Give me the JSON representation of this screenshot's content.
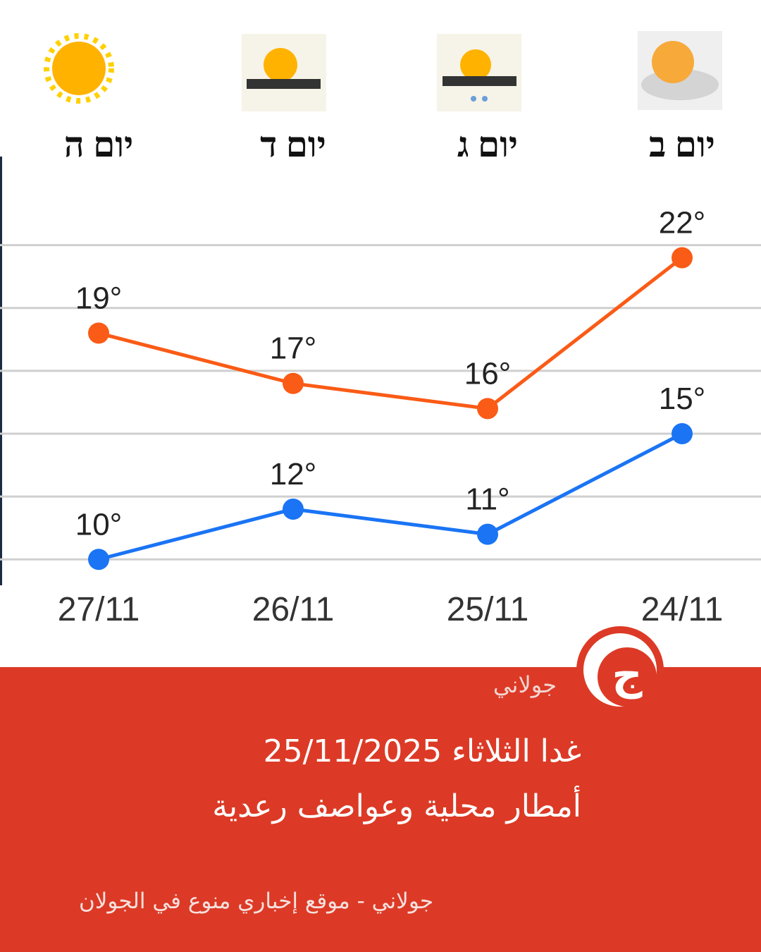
{
  "chart_data": {
    "type": "line",
    "day_labels": [
      "יום ה",
      "יום ד",
      "יום ג",
      "יום ב"
    ],
    "categories": [
      "27/11",
      "26/11",
      "25/11",
      "24/11"
    ],
    "series": [
      {
        "color": "#fa5b16",
        "values": [
          19,
          17,
          16,
          22
        ],
        "value_labels": [
          "19°",
          "17°",
          "16°",
          "22°"
        ]
      },
      {
        "color": "#1a74f4",
        "values": [
          10,
          12,
          11,
          15
        ],
        "value_labels": [
          "10°",
          "12°",
          "11°",
          "15°"
        ]
      }
    ],
    "ylim": [
      9.25,
      25.8
    ],
    "yticks": [
      10,
      12.5,
      15,
      17.5,
      20,
      22.5
    ],
    "grid": true
  },
  "caption": {
    "brand": "جولاني",
    "logo": "ج",
    "headline": [
      "غدا الثلاثاء 25/11/2025",
      "أمطار محلية وعواصف رعدية"
    ],
    "footer": "جولاني - موقع إخباري منوع في الجولان"
  }
}
